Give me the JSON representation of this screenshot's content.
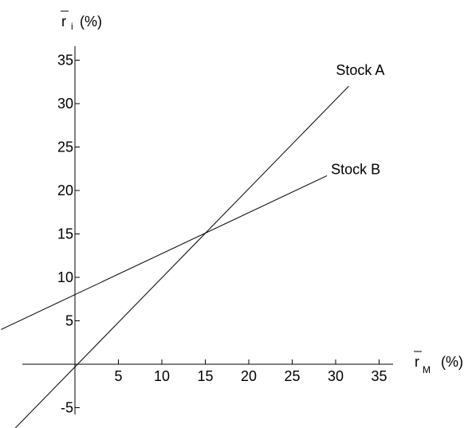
{
  "chart_data": {
    "type": "line",
    "title": "",
    "xlabel": {
      "main": "r",
      "sub": "M",
      "unit": "(%)"
    },
    "ylabel": {
      "main": "r",
      "sub": "i",
      "unit": "(%)"
    },
    "xlim": [
      -8.5,
      36.5
    ],
    "ylim": [
      -8,
      39.5
    ],
    "x_ticks": [
      5,
      10,
      15,
      20,
      25,
      30,
      35
    ],
    "y_ticks": [
      -5,
      5,
      10,
      15,
      20,
      25,
      30,
      35
    ],
    "grid": false,
    "series": [
      {
        "name": "Stock A",
        "x": [
          -7.5,
          31.5
        ],
        "y": [
          -8,
          32
        ]
      },
      {
        "name": "Stock B",
        "x": [
          -8.5,
          29
        ],
        "y": [
          4,
          21.7
        ]
      }
    ]
  }
}
